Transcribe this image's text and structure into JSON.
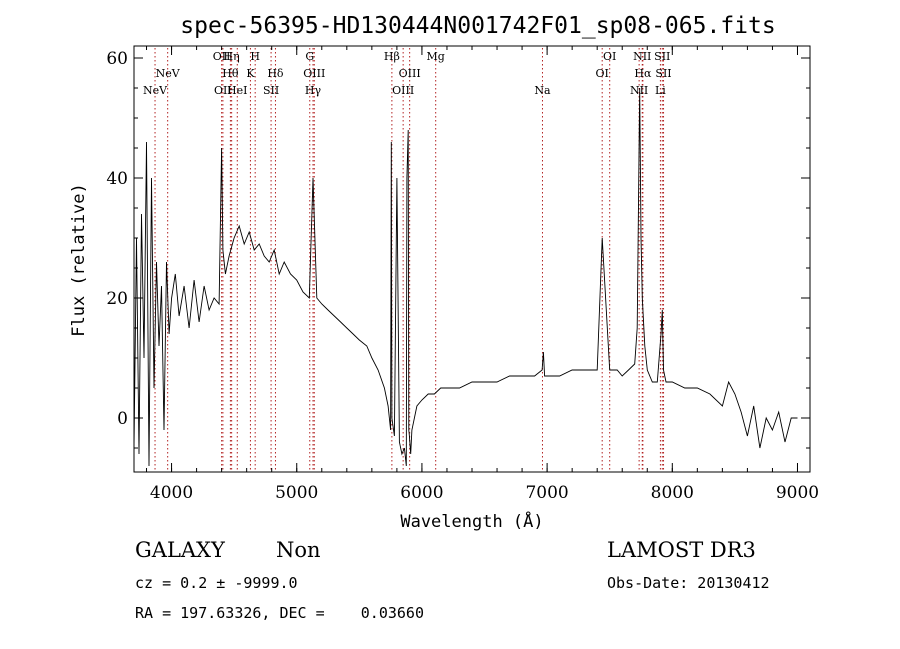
{
  "chart_data": {
    "type": "line",
    "title": "spec-56395-HD130444N001742F01_sp08-065.fits",
    "xlabel": "Wavelength (Å)",
    "ylabel": "Flux (relative)",
    "xlim": [
      3700,
      9100
    ],
    "ylim": [
      -9,
      62
    ],
    "x_ticks": [
      4000,
      5000,
      6000,
      7000,
      8000,
      9000
    ],
    "y_ticks": [
      0,
      20,
      40,
      60
    ],
    "grid": false,
    "line_color": "#000000",
    "marker_color": "#b22222",
    "series": [
      {
        "name": "spectrum",
        "x": [
          3700,
          3720,
          3740,
          3760,
          3780,
          3800,
          3820,
          3840,
          3860,
          3880,
          3900,
          3920,
          3940,
          3960,
          3980,
          4000,
          4030,
          4060,
          4100,
          4140,
          4180,
          4220,
          4260,
          4300,
          4340,
          4380,
          4400,
          4410,
          4430,
          4460,
          4500,
          4540,
          4580,
          4620,
          4660,
          4700,
          4740,
          4780,
          4820,
          4860,
          4900,
          4950,
          5000,
          5050,
          5100,
          5130,
          5160,
          5200,
          5250,
          5300,
          5350,
          5400,
          5450,
          5500,
          5560,
          5600,
          5650,
          5700,
          5730,
          5750,
          5755,
          5760,
          5780,
          5800,
          5820,
          5840,
          5860,
          5875,
          5880,
          5890,
          5895,
          5900,
          5910,
          5920,
          5940,
          5960,
          6000,
          6050,
          6100,
          6150,
          6200,
          6300,
          6400,
          6500,
          6600,
          6700,
          6800,
          6900,
          6960,
          6970,
          6980,
          7000,
          7100,
          7200,
          7300,
          7400,
          7440,
          7500,
          7560,
          7600,
          7650,
          7700,
          7720,
          7740,
          7750,
          7760,
          7780,
          7800,
          7840,
          7880,
          7910,
          7920,
          7930,
          7950,
          8000,
          8100,
          8200,
          8300,
          8400,
          8450,
          8500,
          8550,
          8600,
          8650,
          8700,
          8750,
          8800,
          8850,
          8900,
          8950,
          9000
        ],
        "y": [
          -5,
          30,
          -6,
          34,
          10,
          46,
          -8,
          40,
          5,
          26,
          12,
          22,
          -2,
          26,
          14,
          20,
          24,
          17,
          22,
          15,
          23,
          16,
          22,
          18,
          20,
          19,
          45,
          28,
          24,
          27,
          30,
          32,
          29,
          31,
          28,
          29,
          27,
          26,
          28,
          24,
          26,
          24,
          23,
          21,
          20,
          40,
          20,
          19,
          18,
          17,
          16,
          15,
          14,
          13,
          12,
          10,
          8,
          5,
          2,
          -2,
          46,
          0,
          -3,
          40,
          -4,
          -6,
          -5,
          -8,
          40,
          48,
          -2,
          -3,
          -6,
          -2,
          0,
          2,
          3,
          4,
          4,
          5,
          5,
          5,
          6,
          6,
          6,
          7,
          7,
          7,
          8,
          11,
          7,
          7,
          7,
          8,
          8,
          8,
          30,
          8,
          8,
          7,
          8,
          9,
          15,
          55,
          30,
          20,
          12,
          8,
          6,
          6,
          14,
          18,
          8,
          6,
          6,
          5,
          5,
          4,
          2,
          6,
          4,
          1,
          -3,
          2,
          -5,
          0,
          -2,
          1,
          -4,
          0,
          0
        ]
      }
    ],
    "line_markers": [
      {
        "label": "NeV",
        "wl": 3868,
        "row": 3
      },
      {
        "label": "NeV",
        "wl": 3969,
        "row": 2
      },
      {
        "label": "OII",
        "wl": 4400,
        "row": 1
      },
      {
        "label": "Hη",
        "wl": 4480,
        "row": 1
      },
      {
        "label": "Hθ",
        "wl": 4470,
        "row": 2
      },
      {
        "label": "OII",
        "wl": 4410,
        "row": 3
      },
      {
        "label": "HeI",
        "wl": 4525,
        "row": 3
      },
      {
        "label": "H",
        "wl": 4668,
        "row": 1
      },
      {
        "label": "K",
        "wl": 4630,
        "row": 2
      },
      {
        "label": "Hδ",
        "wl": 4830,
        "row": 2
      },
      {
        "label": "SII",
        "wl": 4795,
        "row": 3
      },
      {
        "label": "G",
        "wl": 5104,
        "row": 1
      },
      {
        "label": "OIII",
        "wl": 5140,
        "row": 2
      },
      {
        "label": "Hγ",
        "wl": 5130,
        "row": 3
      },
      {
        "label": "Hβ",
        "wl": 5760,
        "row": 1
      },
      {
        "label": "OIII",
        "wl": 5902,
        "row": 2
      },
      {
        "label": "OIII",
        "wl": 5850,
        "row": 3
      },
      {
        "label": "Mg",
        "wl": 6110,
        "row": 1
      },
      {
        "label": "Na",
        "wl": 6963,
        "row": 3
      },
      {
        "label": "OI",
        "wl": 7500,
        "row": 1
      },
      {
        "label": "OI",
        "wl": 7440,
        "row": 2
      },
      {
        "label": "NII",
        "wl": 7760,
        "row": 1
      },
      {
        "label": "Hα",
        "wl": 7765,
        "row": 2
      },
      {
        "label": "NII",
        "wl": 7735,
        "row": 3
      },
      {
        "label": "SII",
        "wl": 7920,
        "row": 1
      },
      {
        "label": "SII",
        "wl": 7930,
        "row": 2
      },
      {
        "label": "Li",
        "wl": 7905,
        "row": 3
      }
    ]
  },
  "footer": {
    "object_class": "GALAXY",
    "subclass": "Non",
    "survey": "LAMOST DR3",
    "redshift": "cz = 0.2 ± -9999.0",
    "obs_date": "Obs-Date: 20130412",
    "coords": "RA = 197.63326, DEC =    0.03660"
  }
}
